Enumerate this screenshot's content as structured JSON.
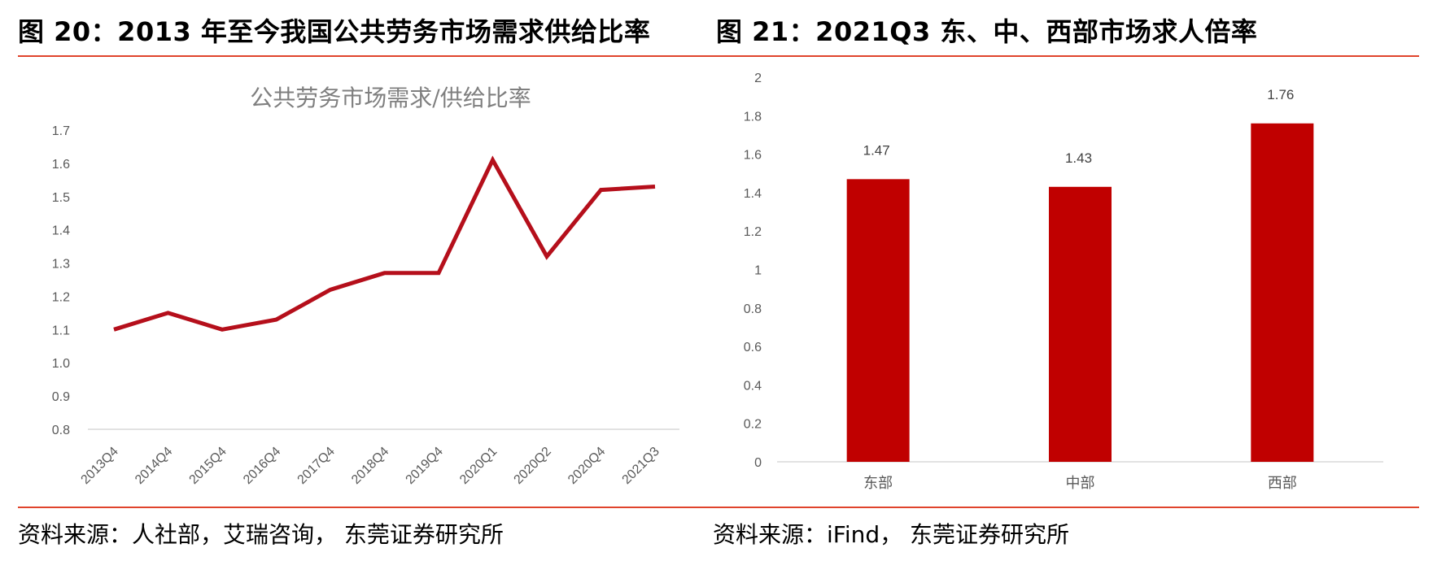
{
  "header": {
    "left_title": "图 20：2013 年至今我国公共劳务市场需求供给比率",
    "right_title": "图 21：2021Q3 东、中、西部市场求人倍率"
  },
  "footer": {
    "left_source": "资料来源：人社部，艾瑞咨询， 东莞证券研究所",
    "right_source": "资料来源：iFind， 东莞证券研究所"
  },
  "colors": {
    "accent_rule": "#e0442c",
    "series": "#b50f1b",
    "bar": "#c00000",
    "axis": "#d9d9d9"
  },
  "chart_data": [
    {
      "type": "line",
      "title": "公共劳务市场需求/供给比率",
      "categories": [
        "2013Q4",
        "2014Q4",
        "2015Q4",
        "2016Q4",
        "2017Q4",
        "2018Q4",
        "2019Q4",
        "2020Q1",
        "2020Q2",
        "2020Q4",
        "2021Q3"
      ],
      "series": [
        {
          "values": [
            1.1,
            1.15,
            1.1,
            1.13,
            1.22,
            1.27,
            1.27,
            1.61,
            1.32,
            1.52,
            1.53
          ]
        }
      ],
      "ylim": [
        0.8,
        1.7
      ],
      "yticks": [
        "0.8",
        "0.9",
        "1.0",
        "1.1",
        "1.2",
        "1.3",
        "1.4",
        "1.5",
        "1.6",
        "1.7"
      ],
      "xlabel": "",
      "ylabel": "",
      "grid": false,
      "legend": "none"
    },
    {
      "type": "bar",
      "title": "",
      "categories": [
        "东部",
        "中部",
        "西部"
      ],
      "series": [
        {
          "values": [
            1.47,
            1.43,
            1.76
          ],
          "labels": [
            "1.47",
            "1.43",
            "1.76"
          ]
        }
      ],
      "ylim": [
        0,
        2
      ],
      "yticks": [
        "0",
        "0.2",
        "0.4",
        "0.6",
        "0.8",
        "1",
        "1.2",
        "1.4",
        "1.6",
        "1.8",
        "2"
      ],
      "xlabel": "",
      "ylabel": "",
      "grid": false,
      "legend": "none"
    }
  ]
}
